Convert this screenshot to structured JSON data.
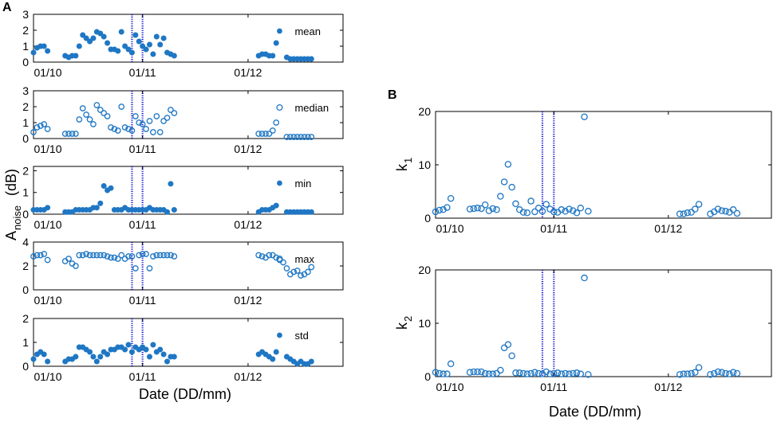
{
  "figure": {
    "panel_labels": {
      "a": "A",
      "b": "B"
    },
    "ylabel_a": {
      "main": "A",
      "sub": "noise",
      "unit": "(dB)"
    },
    "xlabel_a": "Date (DD/mm)",
    "xlabel_b": "Date (DD/mm)",
    "colors": {
      "marker": "#1f77c4",
      "vline": "#1a1ad0",
      "axis": "#000000"
    },
    "x_ticks": [
      {
        "day": 0,
        "label": "01/10"
      },
      {
        "day": 31,
        "label": "01/11"
      },
      {
        "day": 61,
        "label": "01/12"
      }
    ]
  },
  "chart_data": [
    {
      "id": "mean",
      "type": "scatter",
      "panel": "A",
      "legend": "mean",
      "marker": "filled",
      "ylim": [
        0,
        3
      ],
      "yticks": [
        "0",
        "1",
        "2",
        "3"
      ],
      "xlim": [
        0,
        88
      ],
      "vlines": [
        28,
        31
      ],
      "x": [
        0,
        1,
        2,
        3,
        4,
        9,
        10,
        11,
        12,
        13,
        14,
        15,
        16,
        17,
        18,
        19,
        20,
        21,
        22,
        23,
        24,
        25,
        26,
        27,
        28,
        29,
        30,
        31,
        32,
        33,
        34,
        35,
        36,
        37,
        38,
        39,
        40,
        64,
        65,
        66,
        67,
        68,
        69,
        72,
        73,
        74,
        75,
        76,
        77,
        78,
        79
      ],
      "y": [
        0.6,
        0.9,
        1.0,
        1.0,
        0.7,
        0.4,
        0.3,
        0.4,
        0.4,
        1.0,
        1.7,
        1.5,
        1.3,
        1.5,
        1.9,
        1.8,
        1.6,
        1.2,
        0.8,
        0.8,
        0.7,
        1.9,
        1.0,
        0.8,
        0.6,
        1.7,
        1.3,
        1.0,
        0.8,
        1.1,
        0.5,
        1.6,
        1.1,
        1.5,
        0.6,
        0.5,
        0.4,
        0.4,
        0.5,
        0.5,
        0.4,
        0.4,
        1.2,
        0.3,
        0.2,
        0.2,
        0.2,
        0.2,
        0.2,
        0.2,
        0.2
      ]
    },
    {
      "id": "median",
      "type": "scatter",
      "panel": "A",
      "legend": "median",
      "marker": "open",
      "ylim": [
        0,
        3
      ],
      "yticks": [
        "0",
        "1",
        "2",
        "3"
      ],
      "xlim": [
        0,
        88
      ],
      "vlines": [
        28,
        31
      ],
      "x": [
        0,
        1,
        2,
        3,
        4,
        9,
        10,
        11,
        12,
        13,
        14,
        15,
        16,
        17,
        18,
        19,
        20,
        21,
        22,
        23,
        24,
        25,
        26,
        27,
        28,
        29,
        30,
        31,
        32,
        33,
        34,
        35,
        36,
        37,
        38,
        39,
        40,
        64,
        65,
        66,
        67,
        68,
        69,
        72,
        73,
        74,
        75,
        76,
        77,
        78,
        79
      ],
      "y": [
        0.4,
        0.7,
        0.8,
        0.9,
        0.6,
        0.3,
        0.3,
        0.3,
        0.3,
        1.2,
        1.9,
        1.5,
        1.2,
        0.9,
        2.1,
        1.8,
        1.6,
        1.4,
        0.7,
        0.6,
        0.5,
        2.0,
        0.7,
        0.6,
        0.5,
        1.4,
        1.0,
        0.9,
        0.6,
        1.1,
        0.4,
        1.4,
        0.4,
        1.1,
        1.3,
        1.8,
        1.6,
        0.3,
        0.3,
        0.3,
        0.3,
        0.5,
        1.0,
        0.1,
        0.1,
        0.1,
        0.1,
        0.1,
        0.1,
        0.1,
        0.1
      ]
    },
    {
      "id": "min",
      "type": "scatter",
      "panel": "A",
      "legend": "min",
      "marker": "filled",
      "ylim": [
        0,
        2.2
      ],
      "yticks": [
        "0",
        "1",
        "2"
      ],
      "xlim": [
        0,
        88
      ],
      "vlines": [
        28,
        31
      ],
      "x": [
        0,
        1,
        2,
        3,
        4,
        9,
        10,
        11,
        12,
        13,
        14,
        15,
        16,
        17,
        18,
        19,
        20,
        21,
        22,
        23,
        24,
        25,
        26,
        27,
        28,
        29,
        30,
        31,
        32,
        33,
        34,
        35,
        36,
        37,
        38,
        39,
        40,
        64,
        65,
        66,
        67,
        68,
        69,
        72,
        73,
        74,
        75,
        76,
        77,
        78,
        79
      ],
      "y": [
        0.2,
        0.2,
        0.2,
        0.2,
        0.3,
        0.1,
        0.1,
        0.1,
        0.2,
        0.2,
        0.2,
        0.2,
        0.2,
        0.3,
        0.3,
        0.5,
        1.3,
        1.1,
        1.2,
        0.2,
        0.2,
        0.2,
        0.3,
        0.2,
        0.2,
        0.2,
        0.2,
        0.2,
        0.2,
        0.3,
        0.2,
        0.2,
        0.2,
        0.2,
        0.1,
        1.4,
        0.2,
        0.1,
        0.2,
        0.2,
        0.2,
        0.3,
        0.4,
        0.1,
        0.1,
        0.1,
        0.1,
        0.1,
        0.1,
        0.1,
        0.1
      ]
    },
    {
      "id": "max",
      "type": "scatter",
      "panel": "A",
      "legend": "max",
      "marker": "open",
      "ylim": [
        0,
        4
      ],
      "yticks": [
        "0",
        "2",
        "4"
      ],
      "xlim": [
        0,
        88
      ],
      "vlines": [
        28,
        31
      ],
      "x": [
        0,
        1,
        2,
        3,
        4,
        9,
        10,
        11,
        12,
        13,
        14,
        15,
        16,
        17,
        18,
        19,
        20,
        21,
        22,
        23,
        24,
        25,
        26,
        27,
        28,
        29,
        30,
        31,
        32,
        33,
        34,
        35,
        36,
        37,
        38,
        39,
        40,
        64,
        65,
        66,
        67,
        68,
        69,
        70,
        71,
        72,
        73,
        74,
        75,
        76,
        77,
        78,
        79
      ],
      "y": [
        2.8,
        2.9,
        2.9,
        3.0,
        2.5,
        2.4,
        2.6,
        2.2,
        2.0,
        2.9,
        2.9,
        3.0,
        2.9,
        2.9,
        2.9,
        2.9,
        2.9,
        2.8,
        2.7,
        2.7,
        2.6,
        2.9,
        2.6,
        2.8,
        2.8,
        1.8,
        2.9,
        3.0,
        3.0,
        1.8,
        2.8,
        2.9,
        2.9,
        2.9,
        2.9,
        2.9,
        2.8,
        2.9,
        2.8,
        2.7,
        2.9,
        2.9,
        2.7,
        2.5,
        2.3,
        1.8,
        1.3,
        1.5,
        1.6,
        1.2,
        1.3,
        1.5,
        1.9
      ]
    },
    {
      "id": "std",
      "type": "scatter",
      "panel": "A",
      "legend": "std",
      "marker": "filled",
      "ylim": [
        0,
        2
      ],
      "yticks": [
        "0",
        "1",
        "2"
      ],
      "xlim": [
        0,
        88
      ],
      "vlines": [
        28,
        31
      ],
      "x": [
        0,
        1,
        2,
        3,
        4,
        9,
        10,
        11,
        12,
        13,
        14,
        15,
        16,
        17,
        18,
        19,
        20,
        21,
        22,
        23,
        24,
        25,
        26,
        27,
        28,
        29,
        30,
        31,
        32,
        33,
        34,
        35,
        36,
        37,
        38,
        39,
        40,
        64,
        65,
        66,
        67,
        68,
        69,
        72,
        73,
        74,
        75,
        76,
        77,
        78,
        79
      ],
      "y": [
        0.3,
        0.5,
        0.6,
        0.5,
        0.2,
        0.2,
        0.3,
        0.3,
        0.4,
        0.8,
        0.8,
        0.7,
        0.6,
        0.4,
        0.2,
        0.4,
        0.6,
        0.5,
        0.7,
        0.7,
        0.8,
        0.8,
        0.7,
        0.9,
        0.6,
        0.8,
        0.7,
        0.8,
        0.7,
        0.4,
        0.9,
        0.6,
        0.7,
        0.5,
        0.2,
        0.4,
        0.4,
        0.5,
        0.6,
        0.5,
        0.4,
        0.3,
        0.6,
        0.4,
        0.3,
        0.2,
        0.1,
        0.2,
        0.1,
        0.1,
        0.2
      ]
    },
    {
      "id": "k1",
      "type": "scatter",
      "panel": "B",
      "ylabel_main": "k",
      "ylabel_sub": "1",
      "marker": "open",
      "ylim": [
        0,
        20
      ],
      "yticks": [
        "0",
        "10",
        "20"
      ],
      "xlim": [
        0,
        88
      ],
      "vlines": [
        28,
        31
      ],
      "x": [
        0,
        1,
        2,
        3,
        4,
        9,
        10,
        11,
        12,
        13,
        14,
        15,
        16,
        17,
        18,
        19,
        20,
        21,
        22,
        23,
        24,
        25,
        26,
        27,
        28,
        29,
        30,
        31,
        32,
        33,
        34,
        35,
        36,
        37,
        38,
        39,
        40,
        64,
        65,
        66,
        67,
        68,
        69,
        72,
        73,
        74,
        75,
        76,
        77,
        78,
        79
      ],
      "y": [
        1.2,
        1.5,
        1.6,
        2.0,
        3.7,
        1.7,
        1.8,
        1.9,
        1.8,
        2.5,
        1.4,
        1.8,
        1.6,
        4.1,
        6.8,
        10.1,
        5.8,
        2.7,
        1.6,
        1.1,
        1.0,
        3.2,
        1.2,
        1.9,
        1.3,
        2.6,
        1.7,
        1.2,
        1.1,
        1.6,
        1.3,
        1.7,
        1.4,
        1.0,
        1.9,
        19.0,
        1.3,
        0.8,
        0.8,
        1.0,
        1.1,
        1.7,
        2.6,
        0.8,
        1.2,
        1.7,
        1.4,
        1.3,
        1.1,
        1.6,
        0.9
      ]
    },
    {
      "id": "k2",
      "type": "scatter",
      "panel": "B",
      "ylabel_main": "k",
      "ylabel_sub": "2",
      "marker": "open",
      "ylim": [
        0,
        20
      ],
      "yticks": [
        "0",
        "10",
        "20"
      ],
      "xlim": [
        0,
        88
      ],
      "vlines": [
        28,
        31
      ],
      "x": [
        0,
        1,
        2,
        3,
        4,
        9,
        10,
        11,
        12,
        13,
        14,
        15,
        16,
        17,
        18,
        19,
        20,
        21,
        22,
        23,
        24,
        25,
        26,
        27,
        28,
        29,
        30,
        31,
        32,
        33,
        34,
        35,
        36,
        37,
        38,
        39,
        40,
        64,
        65,
        66,
        67,
        68,
        69,
        72,
        73,
        74,
        75,
        76,
        77,
        78,
        79
      ],
      "y": [
        0.8,
        0.6,
        0.5,
        0.5,
        2.4,
        0.8,
        0.9,
        0.9,
        0.9,
        0.6,
        0.5,
        0.5,
        0.6,
        1.2,
        5.4,
        6.0,
        3.9,
        0.7,
        0.7,
        0.6,
        0.5,
        0.6,
        0.8,
        0.6,
        0.5,
        0.9,
        0.5,
        0.6,
        0.7,
        0.5,
        0.6,
        0.5,
        0.6,
        0.7,
        0.5,
        18.5,
        0.4,
        0.4,
        0.5,
        0.5,
        0.6,
        0.8,
        1.7,
        0.4,
        0.6,
        0.9,
        0.8,
        0.6,
        0.5,
        0.8,
        0.6
      ]
    }
  ]
}
